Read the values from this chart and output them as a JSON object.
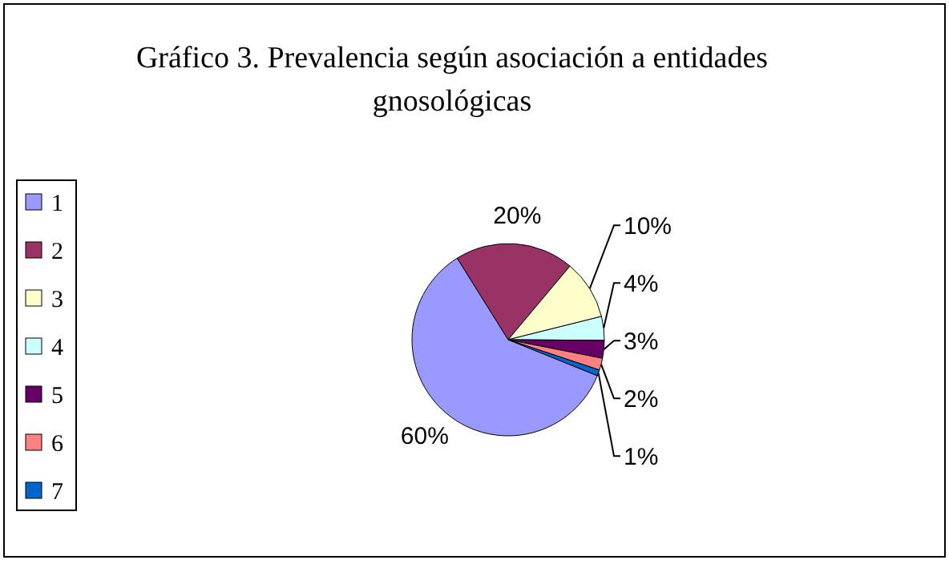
{
  "chart_data": {
    "type": "pie",
    "title": "Gráfico 3. Prevalencia según asociación a entidades gnosológicas",
    "categories": [
      "1",
      "2",
      "3",
      "4",
      "5",
      "6",
      "7"
    ],
    "values": [
      60,
      20,
      10,
      4,
      3,
      2,
      1
    ],
    "colors": [
      "#9999ff",
      "#993366",
      "#ffffcc",
      "#ccffff",
      "#660066",
      "#ff8080",
      "#0066cc"
    ],
    "value_labels": [
      "60%",
      "20%",
      "10%",
      "4%",
      "3%",
      "2%",
      "1%"
    ],
    "legend": "left"
  }
}
